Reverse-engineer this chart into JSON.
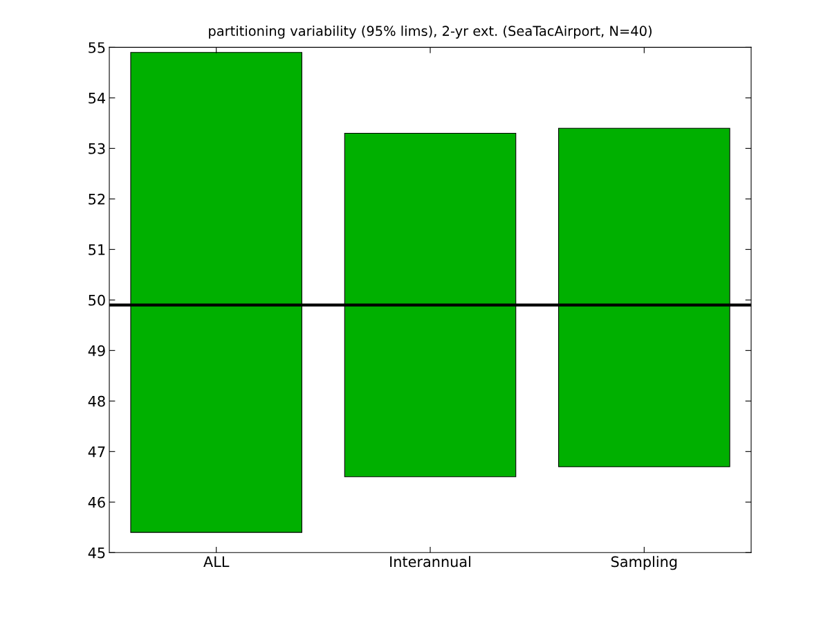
{
  "chart_data": {
    "type": "bar",
    "title": "partitioning variability (95% lims), 2-yr ext. (SeaTacAirport, N=40)",
    "categories": [
      "ALL",
      "Interannual",
      "Sampling"
    ],
    "base": [
      45.4,
      46.5,
      46.7
    ],
    "values": [
      9.5,
      6.8,
      6.7
    ],
    "color": "#00b000",
    "ylim": [
      45,
      55
    ],
    "yticks": [
      45,
      46,
      47,
      48,
      49,
      50,
      51,
      52,
      53,
      54,
      55
    ],
    "ref_lines": [
      {
        "axis": "y",
        "value": 49.9,
        "color": "#000000",
        "line_style": "solid"
      }
    ],
    "grid": false
  }
}
